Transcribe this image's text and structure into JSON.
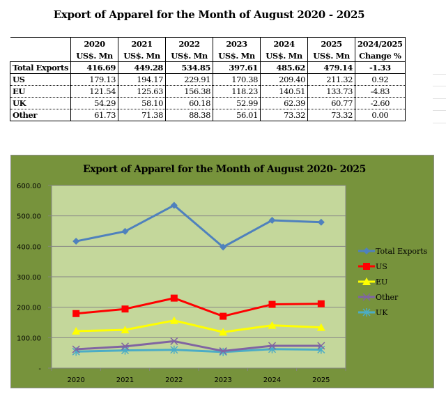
{
  "page": {
    "title": "Export of Apparel for the Month of August 2020 - 2025"
  },
  "table": {
    "columns": [
      {
        "year": "2020",
        "unit": "US$. Mn"
      },
      {
        "year": "2021",
        "unit": "US$. Mn"
      },
      {
        "year": "2022",
        "unit": "US$. Mn"
      },
      {
        "year": "2023",
        "unit": "US$. Mn"
      },
      {
        "year": "2024",
        "unit": "US$. Mn"
      },
      {
        "year": "2025",
        "unit": "US$. Mn"
      },
      {
        "year": "2024/2025",
        "unit": "Change %"
      }
    ],
    "rows": [
      {
        "label": "Total Exports",
        "values": [
          "416.69",
          "449.28",
          "534.85",
          "397.61",
          "485.62",
          "479.14"
        ],
        "change": "-1.33"
      },
      {
        "label": "US",
        "values": [
          "179.13",
          "194.17",
          "229.91",
          "170.38",
          "209.40",
          "211.32"
        ],
        "change": "0.92"
      },
      {
        "label": "EU",
        "values": [
          "121.54",
          "125.63",
          "156.38",
          "118.23",
          "140.51",
          "133.73"
        ],
        "change": "-4.83"
      },
      {
        "label": "UK",
        "values": [
          "54.29",
          "58.10",
          "60.18",
          "52.99",
          "62.39",
          "60.77"
        ],
        "change": "-2.60"
      },
      {
        "label": "Other",
        "values": [
          "61.73",
          "71.38",
          "88.38",
          "56.01",
          "73.32",
          "73.32"
        ],
        "change": "0.00"
      }
    ]
  },
  "chart_data": {
    "type": "line",
    "title": "Export of Apparel for the Month of August 2020- 2025",
    "xlabel": "",
    "ylabel": "",
    "categories": [
      "2020",
      "2021",
      "2022",
      "2023",
      "2024",
      "2025"
    ],
    "ylim": [
      0,
      600
    ],
    "yticks": [
      0,
      100,
      200,
      300,
      400,
      500,
      600
    ],
    "ytick_labels": [
      "-",
      "100.00",
      "200.00",
      "300.00",
      "400.00",
      "500.00",
      "600.00"
    ],
    "grid": true,
    "legend_position": "right",
    "colors": {
      "chart_background": "#77933c",
      "plot_background": "#c4d79b",
      "gridline": "#868686"
    },
    "series": [
      {
        "name": "Total Exports",
        "color": "#4f81bd",
        "marker": "diamond",
        "values": [
          416.69,
          449.28,
          534.85,
          397.61,
          485.62,
          479.14
        ]
      },
      {
        "name": "US",
        "color": "#ff0000",
        "marker": "square",
        "values": [
          179.13,
          194.17,
          229.91,
          170.38,
          209.4,
          211.32
        ]
      },
      {
        "name": "EU",
        "color": "#ffff00",
        "marker": "triangle",
        "values": [
          121.54,
          125.63,
          156.38,
          118.23,
          140.51,
          133.73
        ]
      },
      {
        "name": "Other",
        "color": "#8064a2",
        "marker": "x",
        "values": [
          61.73,
          71.38,
          88.38,
          56.01,
          73.32,
          73.32
        ]
      },
      {
        "name": "UK",
        "color": "#4bacc6",
        "marker": "star",
        "values": [
          54.29,
          58.1,
          60.18,
          52.99,
          62.39,
          60.77
        ]
      }
    ]
  }
}
